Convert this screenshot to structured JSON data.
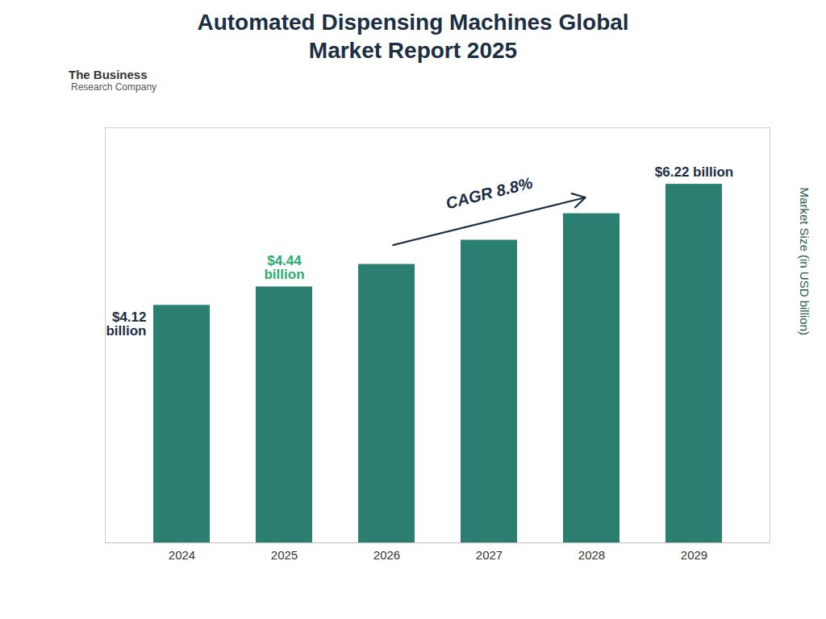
{
  "chart_data": {
    "type": "bar",
    "title": "Automated Dispensing Machines Global\nMarket Report 2025",
    "y_label": "Market Size (in USD billion)",
    "categories": [
      "2024",
      "2025",
      "2026",
      "2027",
      "2028",
      "2029"
    ],
    "values": [
      4.12,
      4.44,
      4.83,
      5.25,
      5.71,
      6.22
    ],
    "color": "#2a7f70",
    "ylim": [
      0,
      7.2
    ],
    "tick_labels": "x",
    "grid": false,
    "annotations": [
      {
        "text": "$4.12\nbillion",
        "category": "2024",
        "color": "#1a2e44"
      },
      {
        "text": "$4.44\nbillion",
        "category": "2025",
        "color": "#2aad70"
      },
      {
        "text": "$6.22 billion",
        "category": "2029",
        "color": "#1a2e44"
      },
      {
        "text": "CAGR 8.8%",
        "from": "2026",
        "to": "2028",
        "color": "#1a2e44"
      },
      {
        "text": "The Business"
      },
      {
        "text": "Research Company"
      }
    ]
  }
}
